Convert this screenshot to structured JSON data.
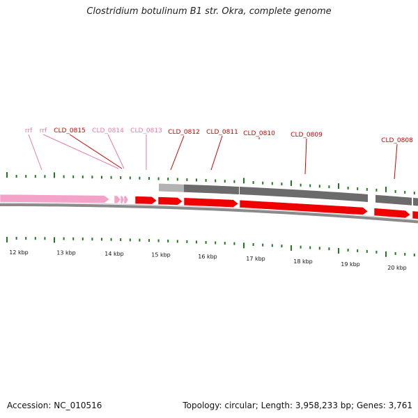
{
  "title": "Clostridium botulinum B1 str. Okra, complete genome",
  "footer": {
    "accession": "Accession: NC_010516",
    "summary": "Topology: circular; Length: 3,958,233 bp; Genes: 3,761"
  },
  "colors": {
    "rna_label": "#e67aa6",
    "rna_feature": "#f4a3c8",
    "cds_label": "#cc0000",
    "cds_feature": "#ee0000",
    "gene_bar_light": "#b3b3b3",
    "gene_bar_dark": "#6b6b6b",
    "tick": "#1f7a1f",
    "backbone": "#8a8a8a"
  },
  "genes": [
    {
      "label": "rrf",
      "type": "rna"
    },
    {
      "label": "rrf",
      "type": "rna"
    },
    {
      "label": "CLD_0815",
      "type": "cds"
    },
    {
      "label": "CLD_0814",
      "type": "rna"
    },
    {
      "label": "CLD_0813",
      "type": "rna"
    },
    {
      "label": "CLD_0812",
      "type": "cds"
    },
    {
      "label": "CLD_0811",
      "type": "cds"
    },
    {
      "label": "CLD_0810",
      "type": "cds"
    },
    {
      "label": "CLD_0809",
      "type": "cds"
    },
    {
      "label": "CLD_0808",
      "type": "cds"
    }
  ],
  "scale_labels": [
    "12 kbp",
    "13 kbp",
    "14 kbp",
    "15 kbp",
    "16 kbp",
    "17 kbp",
    "18 kbp",
    "19 kbp",
    "20 kbp"
  ]
}
